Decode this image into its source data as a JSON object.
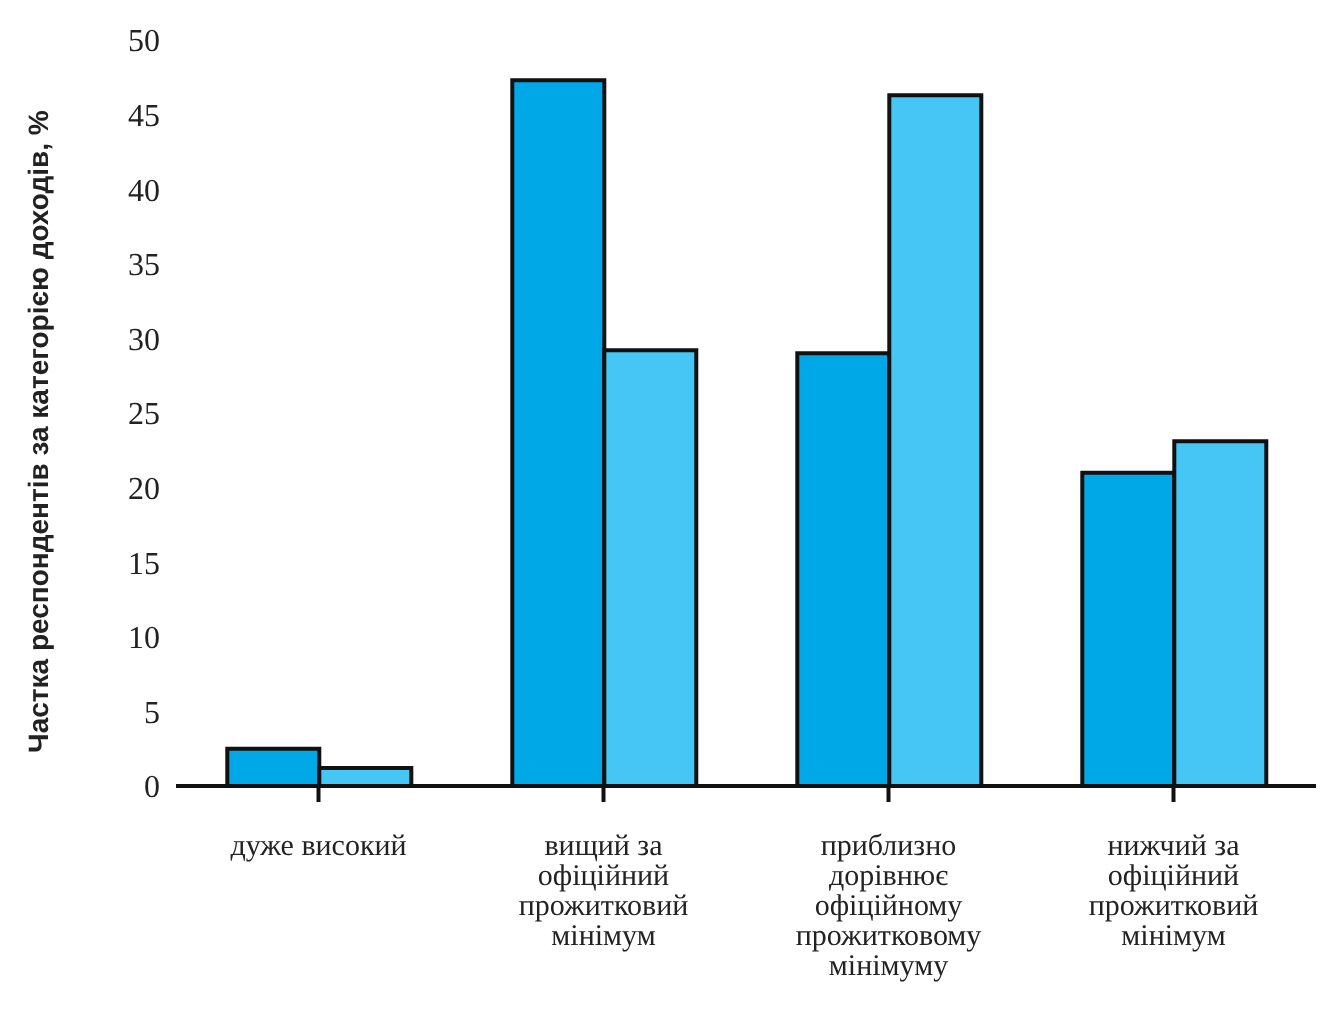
{
  "chart_data": {
    "type": "bar",
    "ylabel": "Частка респондентів за категорією доходів, %",
    "categories": [
      "дуже високий",
      "вищий за офіційний прожитковий мінімум",
      "приблизно дорівнює офіційному прожитковому мінімуму",
      "нижчий за офіційний прожитковий мінімум"
    ],
    "series": [
      {
        "color": "#00a8e8",
        "values": [
          2.5,
          47.3,
          29,
          21
        ]
      },
      {
        "color": "#45c6f4",
        "values": [
          1.2,
          29.2,
          46.3,
          23.1
        ]
      }
    ],
    "ylim": [
      0,
      50
    ],
    "yticks": [
      0,
      5,
      10,
      15,
      20,
      25,
      30,
      35,
      40,
      45,
      50
    ],
    "grid": false,
    "legend": false
  }
}
